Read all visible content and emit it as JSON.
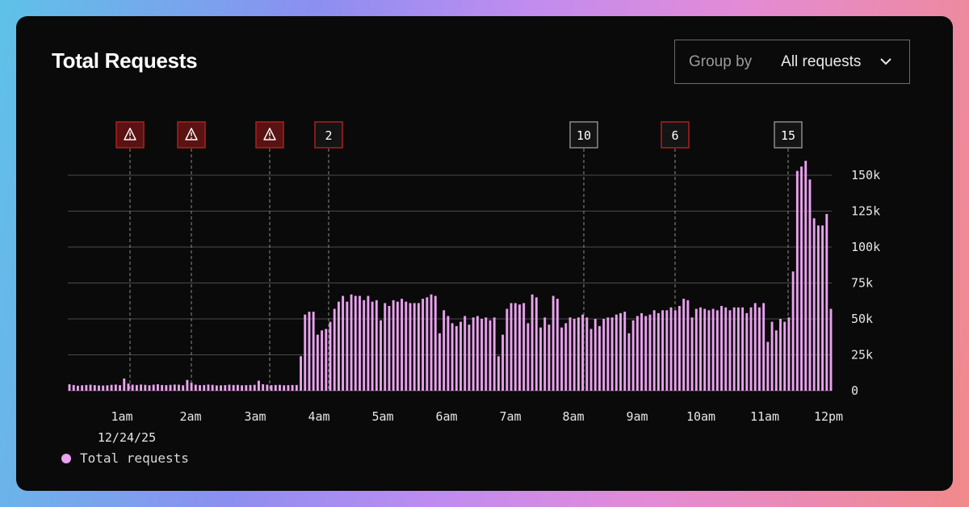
{
  "header": {
    "title": "Total Requests",
    "group_by_label": "Group by",
    "group_by_value": "All requests"
  },
  "colors": {
    "bar": "#eba2f0",
    "alert_fill": "#5a1212",
    "alert_border": "#b01e1e",
    "event_fill": "#141414",
    "event_border": "#8a8a8a",
    "grid": "#4a4a4a"
  },
  "icons": {
    "alert": "warning-triangle-icon",
    "dropdown": "chevron-down-icon"
  },
  "chart_data": {
    "type": "bar",
    "title": "Total Requests",
    "date_label": "12/24/25",
    "x_tick_labels": [
      "1am",
      "2am",
      "3am",
      "4am",
      "5am",
      "6am",
      "7am",
      "8am",
      "9am",
      "10am",
      "11am",
      "12pm"
    ],
    "y_ticks": [
      0,
      25000,
      50000,
      75000,
      100000,
      125000,
      150000
    ],
    "y_tick_labels": [
      "0",
      "25k",
      "50k",
      "75k",
      "100k",
      "125k",
      "150k"
    ],
    "ylim": [
      0,
      165000
    ],
    "grid": true,
    "legend_placement": "bottom-left",
    "series": [
      {
        "name": "Total requests",
        "values": [
          4500,
          4000,
          3500,
          3800,
          4000,
          4200,
          3900,
          3700,
          3600,
          3800,
          4100,
          4300,
          3900,
          8500,
          5000,
          4200,
          4000,
          4300,
          4100,
          3800,
          4200,
          4500,
          4000,
          3900,
          4100,
          4300,
          4200,
          3800,
          7500,
          5500,
          4200,
          3900,
          4000,
          4300,
          4100,
          3700,
          3800,
          3900,
          4200,
          4000,
          4100,
          3800,
          3900,
          4000,
          4100,
          7000,
          4500,
          4200,
          3900,
          4000,
          4100,
          3800,
          3900,
          4000,
          4000,
          24000,
          53000,
          55000,
          55000,
          39000,
          42000,
          43000,
          48000,
          57000,
          62000,
          66000,
          62000,
          67000,
          66000,
          66000,
          63000,
          66000,
          62000,
          63000,
          49000,
          61000,
          59000,
          63000,
          62000,
          64000,
          62000,
          61000,
          61000,
          61000,
          64000,
          65000,
          67000,
          66000,
          40000,
          56000,
          52000,
          47000,
          45000,
          48000,
          52000,
          46000,
          51000,
          52000,
          50000,
          51000,
          49000,
          51000,
          24000,
          39000,
          57000,
          61000,
          61000,
          60000,
          61000,
          47000,
          67000,
          65000,
          44000,
          51000,
          46000,
          66000,
          64000,
          44000,
          47000,
          51000,
          50000,
          51000,
          53000,
          51000,
          43000,
          50000,
          45000,
          50000,
          51000,
          51000,
          53000,
          54000,
          55000,
          40000,
          49000,
          52000,
          54000,
          52000,
          53000,
          56000,
          54000,
          56000,
          56000,
          58000,
          56000,
          59000,
          64000,
          63000,
          51000,
          57000,
          58000,
          57000,
          56000,
          57000,
          56000,
          59000,
          58000,
          56000,
          58000,
          58000,
          58000,
          54000,
          58000,
          61000,
          58000,
          61000,
          34000,
          48000,
          42000,
          50000,
          48000,
          51000,
          83000,
          153000,
          156000,
          160000,
          147000,
          120000,
          115000,
          115000,
          123000,
          57000
        ]
      }
    ],
    "markers": [
      {
        "type": "alert",
        "label": ""
      },
      {
        "type": "alert",
        "label": ""
      },
      {
        "type": "alert",
        "label": ""
      },
      {
        "type": "alert",
        "label": "2"
      },
      {
        "type": "event",
        "label": "10"
      },
      {
        "type": "alert",
        "label": "6"
      },
      {
        "type": "event",
        "label": "15"
      }
    ]
  }
}
